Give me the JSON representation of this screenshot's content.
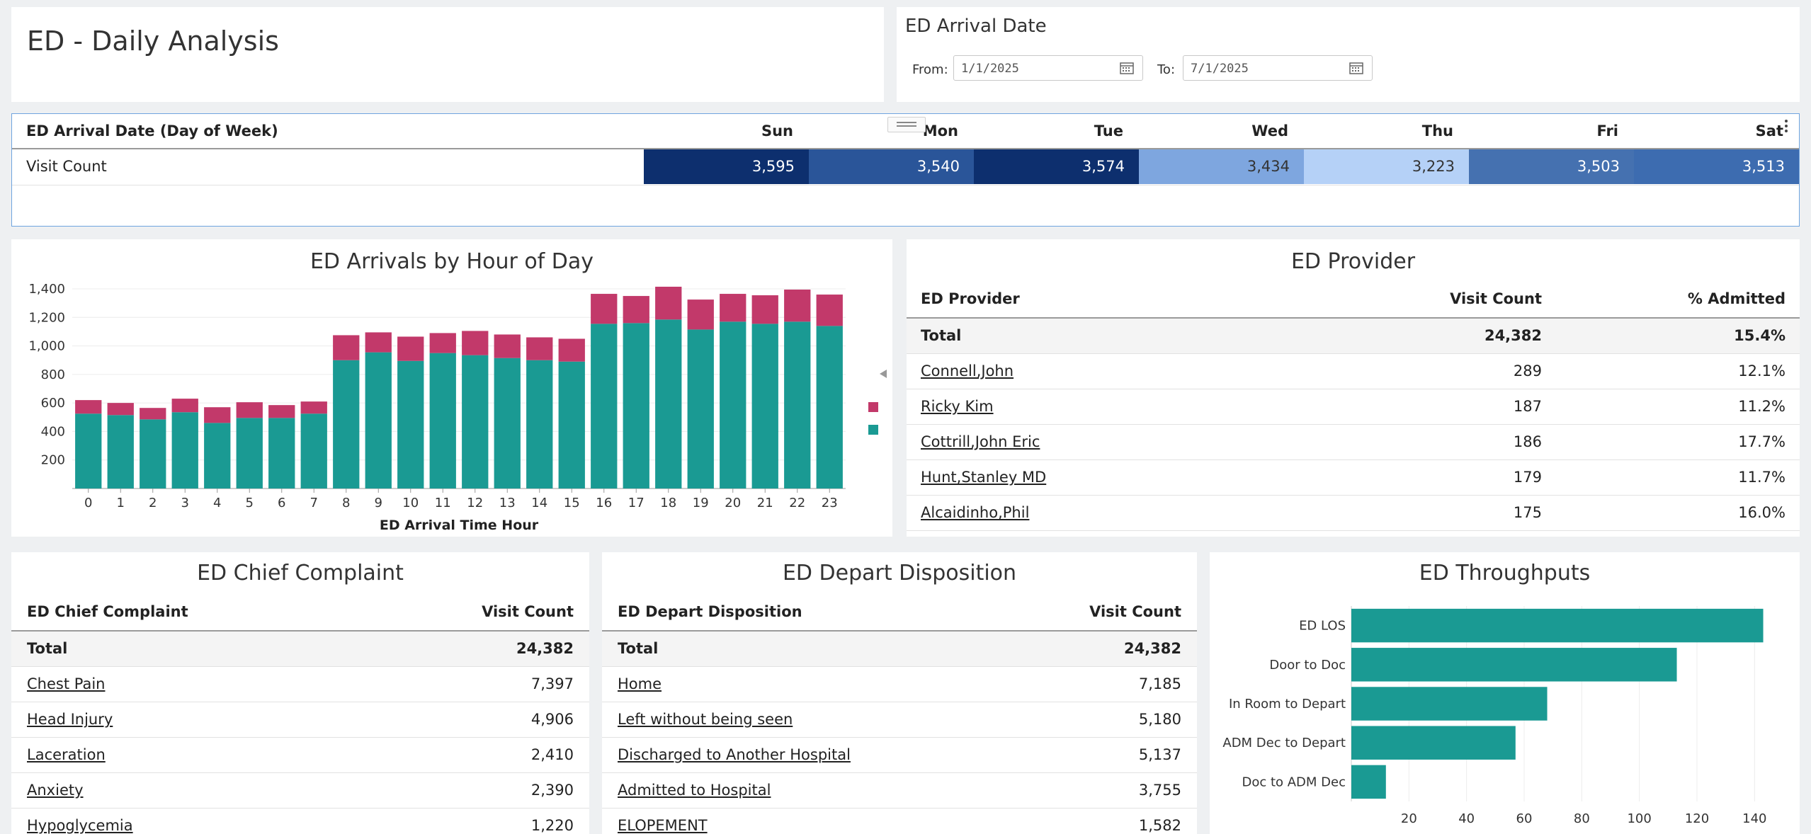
{
  "header": {
    "title": "ED - Daily Analysis"
  },
  "filter": {
    "title": "ED Arrival Date",
    "from_label": "From:",
    "from_value": "1/1/2025",
    "to_label": "To:",
    "to_value": "7/1/2025"
  },
  "dow": {
    "row_header": "ED Arrival Date (Day of Week)",
    "row_label": "Visit Count",
    "days": [
      "Sun",
      "Mon",
      "Tue",
      "Wed",
      "Thu",
      "Fri",
      "Sat"
    ],
    "values": [
      "3,595",
      "3,540",
      "3,574",
      "3,434",
      "3,223",
      "3,503",
      "3,513"
    ],
    "colors": [
      "#0d2f6e",
      "#2a5599",
      "#0d2f6e",
      "#7ea6df",
      "#b5d1f7",
      "#4571b0",
      "#3d6cb0"
    ],
    "text_colors": [
      "#ffffff",
      "#ffffff",
      "#ffffff",
      "#333333",
      "#333333",
      "#ffffff",
      "#ffffff"
    ]
  },
  "arrivals_chart": {
    "title": "ED Arrivals by Hour of Day",
    "chart_data": {
      "type": "bar",
      "stacked": true,
      "categories": [
        "0",
        "1",
        "2",
        "3",
        "4",
        "5",
        "6",
        "7",
        "8",
        "9",
        "10",
        "11",
        "12",
        "13",
        "14",
        "15",
        "16",
        "17",
        "18",
        "19",
        "20",
        "21",
        "22",
        "23"
      ],
      "series": [
        {
          "color": "#1a9a93",
          "values": [
            525,
            515,
            485,
            535,
            460,
            495,
            495,
            525,
            900,
            955,
            895,
            950,
            935,
            915,
            900,
            890,
            1155,
            1160,
            1185,
            1115,
            1170,
            1155,
            1170,
            1140
          ]
        },
        {
          "color": "#c2396a",
          "values": [
            95,
            85,
            80,
            95,
            110,
            110,
            90,
            85,
            175,
            140,
            170,
            140,
            170,
            165,
            160,
            160,
            210,
            190,
            230,
            210,
            195,
            200,
            225,
            220
          ]
        }
      ],
      "xlabel": "ED Arrival Time Hour",
      "ylabel": "",
      "yticks": [
        "200",
        "400",
        "600",
        "800",
        "1,000",
        "1,200",
        "1,400"
      ],
      "ylim": [
        0,
        1400
      ],
      "grid": true,
      "legend": "right"
    }
  },
  "provider": {
    "title": "ED Provider",
    "columns": [
      "ED Provider",
      "Visit Count",
      "% Admitted"
    ],
    "total": {
      "name": "Total",
      "visits": "24,382",
      "admitted": "15.4%"
    },
    "rows": [
      {
        "name": "Connell,John",
        "visits": "289",
        "admitted": "12.1%"
      },
      {
        "name": "Ricky Kim",
        "visits": "187",
        "admitted": "11.2%"
      },
      {
        "name": "Cottrill,John Eric",
        "visits": "186",
        "admitted": "17.7%"
      },
      {
        "name": "Hunt,Stanley MD",
        "visits": "179",
        "admitted": "11.7%"
      },
      {
        "name": "Alcaidinho,Phil",
        "visits": "175",
        "admitted": "16.0%"
      }
    ]
  },
  "complaint": {
    "title": "ED Chief Complaint",
    "columns": [
      "ED Chief Complaint",
      "Visit Count"
    ],
    "total": {
      "name": "Total",
      "visits": "24,382"
    },
    "rows": [
      {
        "name": "Chest Pain",
        "visits": "7,397"
      },
      {
        "name": "Head Injury",
        "visits": "4,906"
      },
      {
        "name": "Laceration",
        "visits": "2,410"
      },
      {
        "name": "Anxiety",
        "visits": "2,390"
      },
      {
        "name": "Hypoglycemia",
        "visits": "1,220"
      }
    ]
  },
  "disposition": {
    "title": "ED Depart Disposition",
    "columns": [
      "ED Depart Disposition",
      "Visit Count"
    ],
    "total": {
      "name": "Total",
      "visits": "24,382"
    },
    "rows": [
      {
        "name": "Home",
        "visits": "7,185"
      },
      {
        "name": "Left without being seen",
        "visits": "5,180"
      },
      {
        "name": "Discharged to Another Hospital",
        "visits": "5,137"
      },
      {
        "name": "Admitted to Hospital",
        "visits": "3,755"
      },
      {
        "name": "ELOPEMENT",
        "visits": "1,582"
      }
    ]
  },
  "throughputs": {
    "title": "ED Throughputs",
    "chart_data": {
      "type": "bar",
      "orientation": "horizontal",
      "categories": [
        "ED LOS",
        "Door to Doc",
        "In Room to Depart",
        "ADM Dec to Depart",
        "Doc to ADM Dec"
      ],
      "values": [
        143,
        113,
        68,
        57,
        12
      ],
      "color": "#1a9a93",
      "xticks": [
        "20",
        "40",
        "60",
        "80",
        "100",
        "120",
        "140"
      ],
      "xlim": [
        0,
        150
      ],
      "grid": true
    }
  }
}
